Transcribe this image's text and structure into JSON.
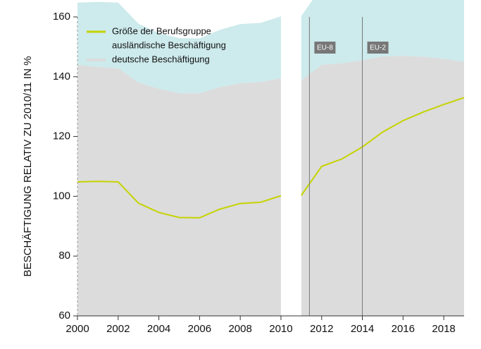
{
  "chart_data": {
    "type": "area",
    "ylabel": "BESCHÄFTIGUNG RELATIV ZU 2010/11 IN %",
    "x": [
      2000,
      2001,
      2002,
      2003,
      2004,
      2005,
      2006,
      2007,
      2008,
      2009,
      2010,
      null,
      2011,
      2012,
      2013,
      2014,
      2015,
      2016,
      2017,
      2018,
      2019
    ],
    "series": [
      {
        "name": "Größe der Berufsgruppe",
        "type": "line",
        "color": "#c5d300",
        "values": [
          104.8,
          105,
          104.8,
          97.7,
          94.6,
          92.9,
          92.8,
          95.7,
          97.6,
          98,
          100.2,
          null,
          100.3,
          110,
          112.5,
          116.5,
          121.5,
          125.3,
          128.2,
          130.7,
          133
        ]
      },
      {
        "name": "ausländische Beschäftigung",
        "type": "area",
        "color": "#cdeaec",
        "values": [
          20.8,
          21.7,
          22,
          19.7,
          18.6,
          18.4,
          18.3,
          19.2,
          19.8,
          19.8,
          20.7,
          null,
          21.5,
          26,
          28,
          31,
          34.7,
          38.3,
          41.5,
          44.7,
          48
        ]
      },
      {
        "name": "deutsche Beschäftigung",
        "type": "area",
        "color": "#dcdcdc",
        "values": [
          84,
          83.3,
          82.8,
          78,
          76,
          74.5,
          74.5,
          76.5,
          77.8,
          78.2,
          79.5,
          null,
          78.8,
          84,
          84.5,
          85.5,
          86.8,
          87,
          86.7,
          86,
          85
        ]
      }
    ],
    "annotations": [
      {
        "label": "EU-8",
        "x": 2011.4
      },
      {
        "label": "EU-2",
        "x": 2014
      }
    ],
    "xlim": [
      2000,
      2019
    ],
    "xticks": [
      2000,
      2002,
      2004,
      2006,
      2008,
      2010,
      2012,
      2014,
      2016,
      2018
    ],
    "ylim": [
      60,
      160
    ],
    "yticks": [
      60,
      80,
      100,
      120,
      140,
      160
    ],
    "legend": "upper left"
  }
}
